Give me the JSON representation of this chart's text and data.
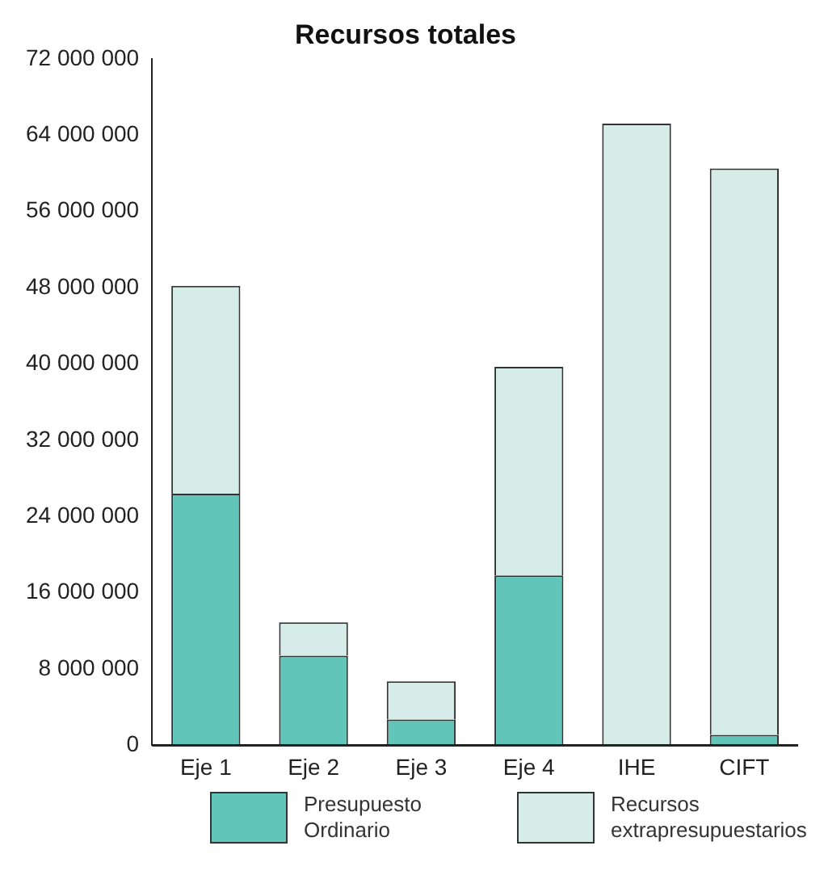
{
  "chart_data": {
    "type": "bar",
    "title": "Recursos totales",
    "stacked": true,
    "categories": [
      "Eje 1",
      "Eje 2",
      "Eje 3",
      "Eje 4",
      "IHE",
      "CIFT"
    ],
    "series": [
      {
        "name": "Presupuesto Ordinario",
        "color": "#62c5b9",
        "values": [
          26400000,
          9400000,
          2700000,
          17800000,
          0,
          1100000
        ]
      },
      {
        "name": "Recursos extrapresupuestarios",
        "color": "#d5ece8",
        "values": [
          21800000,
          3500000,
          4000000,
          21900000,
          65200000,
          59400000
        ]
      }
    ],
    "ylim": [
      0,
      72000000
    ],
    "yticks": [
      {
        "value": 0,
        "label": "0"
      },
      {
        "value": 8000000,
        "label": "8 000 000"
      },
      {
        "value": 16000000,
        "label": "16 000 000"
      },
      {
        "value": 24000000,
        "label": "24 000 000"
      },
      {
        "value": 32000000,
        "label": "32 000 000"
      },
      {
        "value": 40000000,
        "label": "40 000 000"
      },
      {
        "value": 48000000,
        "label": "48 000 000"
      },
      {
        "value": 56000000,
        "label": "56 000 000"
      },
      {
        "value": 64000000,
        "label": "64 000 000"
      },
      {
        "value": 72000000,
        "label": "72 000 000"
      }
    ],
    "grid": false,
    "legend": "bottom"
  }
}
